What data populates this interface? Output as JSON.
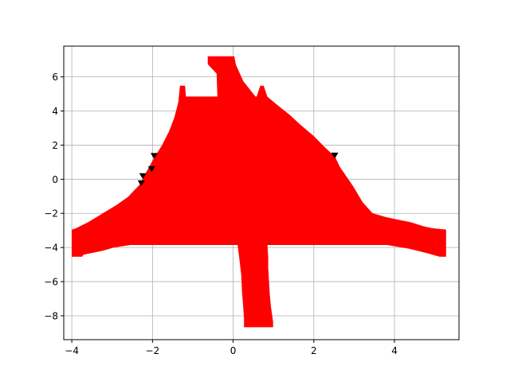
{
  "chart_data": {
    "type": "area",
    "title": "",
    "xlabel": "",
    "ylabel": "",
    "grid": true,
    "legend": false,
    "xlim": [
      -4.2,
      5.6
    ],
    "ylim": [
      -9.4,
      7.8
    ],
    "xticks": [
      -4,
      -2,
      0,
      2,
      4
    ],
    "yticks": [
      -8,
      -6,
      -4,
      -2,
      0,
      2,
      4,
      6
    ],
    "xtick_labels": [
      "−4",
      "−2",
      "0",
      "2",
      "4"
    ],
    "ytick_labels": [
      "−8",
      "−6",
      "−4",
      "−2",
      "0",
      "2",
      "4",
      "6"
    ],
    "colors": {
      "fill": "#ff0000",
      "marker": "#000000",
      "grid": "#b0b0b0",
      "axes": "#000000"
    },
    "series": [
      {
        "kind": "filled-region",
        "polygon": [
          {
            "x": -3.99,
            "y": -2.97
          },
          {
            "x": -3.99,
            "y": -4.52
          },
          {
            "x": -3.75,
            "y": -4.52
          },
          {
            "x": -3.72,
            "y": -4.4
          },
          {
            "x": -3.51,
            "y": -4.3
          },
          {
            "x": -3.21,
            "y": -4.15
          },
          {
            "x": -2.96,
            "y": -3.98
          },
          {
            "x": -2.55,
            "y": -3.83
          },
          {
            "x": -1.53,
            "y": -3.83
          },
          {
            "x": -0.52,
            "y": -3.83
          },
          {
            "x": 0.12,
            "y": -3.83
          },
          {
            "x": 0.16,
            "y": -4.6
          },
          {
            "x": 0.21,
            "y": -5.6
          },
          {
            "x": 0.23,
            "y": -6.6
          },
          {
            "x": 0.26,
            "y": -7.5
          },
          {
            "x": 0.28,
            "y": -8.15
          },
          {
            "x": 0.28,
            "y": -8.65
          },
          {
            "x": 0.98,
            "y": -8.65
          },
          {
            "x": 0.98,
            "y": -8.35
          },
          {
            "x": 0.93,
            "y": -7.5
          },
          {
            "x": 0.9,
            "y": -6.8
          },
          {
            "x": 0.88,
            "y": -6.0
          },
          {
            "x": 0.86,
            "y": -5.2
          },
          {
            "x": 0.86,
            "y": -4.6
          },
          {
            "x": 0.84,
            "y": -3.83
          },
          {
            "x": 1.9,
            "y": -3.83
          },
          {
            "x": 3.04,
            "y": -3.83
          },
          {
            "x": 3.82,
            "y": -3.83
          },
          {
            "x": 4.02,
            "y": -3.91
          },
          {
            "x": 4.38,
            "y": -4.06
          },
          {
            "x": 4.8,
            "y": -4.3
          },
          {
            "x": 5.12,
            "y": -4.52
          },
          {
            "x": 5.27,
            "y": -4.52
          },
          {
            "x": 5.27,
            "y": -2.97
          },
          {
            "x": 4.92,
            "y": -2.89
          },
          {
            "x": 4.72,
            "y": -2.78
          },
          {
            "x": 4.41,
            "y": -2.55
          },
          {
            "x": 3.8,
            "y": -2.25
          },
          {
            "x": 3.45,
            "y": -2.01
          },
          {
            "x": 3.2,
            "y": -1.35
          },
          {
            "x": 2.96,
            "y": -0.4
          },
          {
            "x": 2.64,
            "y": 0.7
          },
          {
            "x": 2.52,
            "y": 1.3
          },
          {
            "x": 2.25,
            "y": 1.9
          },
          {
            "x": 2.0,
            "y": 2.5
          },
          {
            "x": 1.65,
            "y": 3.2
          },
          {
            "x": 1.4,
            "y": 3.75
          },
          {
            "x": 1.08,
            "y": 4.35
          },
          {
            "x": 0.84,
            "y": 4.82
          },
          {
            "x": 0.75,
            "y": 5.46
          },
          {
            "x": 0.68,
            "y": 5.46
          },
          {
            "x": 0.59,
            "y": 4.82
          },
          {
            "x": 0.55,
            "y": 4.82
          },
          {
            "x": 0.24,
            "y": 5.75
          },
          {
            "x": 0.06,
            "y": 6.7
          },
          {
            "x": 0.02,
            "y": 7.18
          },
          {
            "x": -0.62,
            "y": 7.18
          },
          {
            "x": -0.62,
            "y": 6.75
          },
          {
            "x": -0.4,
            "y": 6.2
          },
          {
            "x": -0.38,
            "y": 4.82
          },
          {
            "x": -1.18,
            "y": 4.82
          },
          {
            "x": -1.2,
            "y": 5.46
          },
          {
            "x": -1.31,
            "y": 5.46
          },
          {
            "x": -1.35,
            "y": 4.5
          },
          {
            "x": -1.45,
            "y": 3.6
          },
          {
            "x": -1.58,
            "y": 2.8
          },
          {
            "x": -1.75,
            "y": 2.0
          },
          {
            "x": -1.95,
            "y": 1.25
          },
          {
            "x": -2.15,
            "y": 0.4
          },
          {
            "x": -2.3,
            "y": -0.3
          },
          {
            "x": -2.6,
            "y": -1.05
          },
          {
            "x": -2.9,
            "y": -1.55
          },
          {
            "x": -3.25,
            "y": -2.05
          },
          {
            "x": -3.6,
            "y": -2.55
          },
          {
            "x": -3.9,
            "y": -2.9
          }
        ]
      },
      {
        "kind": "markers",
        "marker": "triangle-down",
        "points": [
          {
            "x": -2.24,
            "y": 0.2
          },
          {
            "x": -2.02,
            "y": 0.61
          },
          {
            "x": -1.96,
            "y": 1.38
          },
          {
            "x": -2.28,
            "y": -0.22
          },
          {
            "x": 2.52,
            "y": 1.4
          }
        ]
      }
    ]
  }
}
